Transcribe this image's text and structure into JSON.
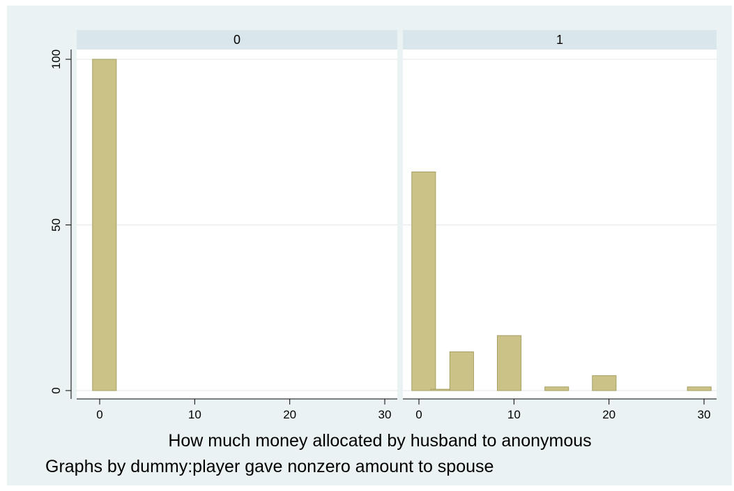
{
  "chart_data": {
    "type": "bar",
    "xlabel": "How much money allocated by husband to anonymous",
    "note": "Graphs by dummy:player gave nonzero amount to spouse",
    "ylim": [
      0,
      100
    ],
    "xlim": [
      -2,
      31
    ],
    "yticks": [
      0,
      50,
      100
    ],
    "xticks": [
      0,
      10,
      20,
      30
    ],
    "bar_width": 2.5,
    "grid": true,
    "colors": {
      "bar_fill": "#cbc287",
      "bar_stroke": "#a79e61",
      "background": "#eaf2f3",
      "panel_header": "#d9e6eb",
      "plot_area": "#ffffff",
      "gridline": "#e6eced"
    },
    "panels": [
      {
        "label": "0",
        "bars": [
          {
            "x": 0.5,
            "y": 100
          }
        ]
      },
      {
        "label": "1",
        "bars": [
          {
            "x": 0.5,
            "y": 66
          },
          {
            "x": 2.5,
            "y": 0.4
          },
          {
            "x": 4.5,
            "y": 11.7
          },
          {
            "x": 9.5,
            "y": 16.6
          },
          {
            "x": 14.5,
            "y": 1.1
          },
          {
            "x": 19.5,
            "y": 4.5
          },
          {
            "x": 29.5,
            "y": 1.1
          }
        ]
      }
    ]
  }
}
